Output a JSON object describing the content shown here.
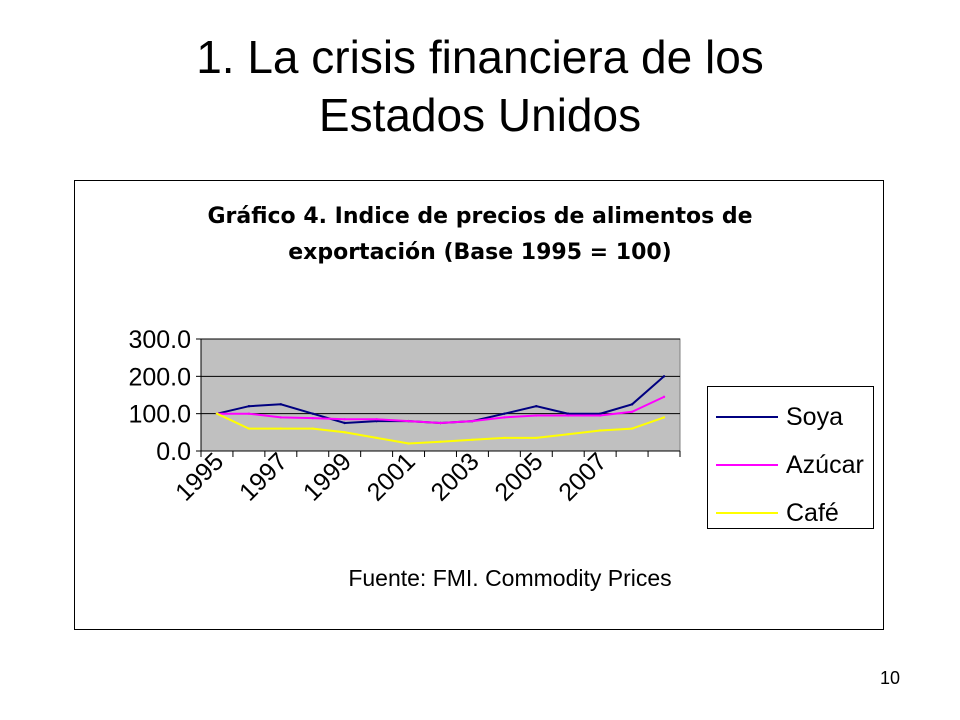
{
  "slide": {
    "title_line1": "1. La crisis financiera de los",
    "title_line2": "Estados Unidos",
    "page_number": "10"
  },
  "chart_data": {
    "type": "line",
    "title_line1": "Gráfico 4. Indice de precios de alimentos de",
    "title_line2": "exportación (Base 1995 = 100)",
    "source": "Fuente: FMI. Commodity Prices",
    "x": [
      1995,
      1996,
      1997,
      1998,
      1999,
      2000,
      2001,
      2002,
      2003,
      2004,
      2005,
      2006,
      2007,
      2008,
      2009
    ],
    "x_tick_labels": [
      "1995",
      "1997",
      "1999",
      "2001",
      "2003",
      "2005",
      "2007"
    ],
    "y_tick_labels": [
      "0.0",
      "100.0",
      "200.0",
      "300.0"
    ],
    "ylim": [
      0,
      300
    ],
    "y_ticks": [
      0,
      100,
      200,
      300
    ],
    "plot_background": "#c0c0c0",
    "grid": true,
    "legend_position": "right",
    "series": [
      {
        "name": "Soya",
        "color": "#000080",
        "values": [
          100,
          120,
          125,
          100,
          75,
          80,
          80,
          75,
          80,
          100,
          120,
          100,
          100,
          125,
          200
        ]
      },
      {
        "name": "Azúcar",
        "color": "#ff00ff",
        "values": [
          100,
          100,
          90,
          88,
          85,
          85,
          80,
          75,
          80,
          90,
          95,
          95,
          95,
          105,
          145
        ]
      },
      {
        "name": "Café",
        "color": "#ffff00",
        "values": [
          100,
          60,
          60,
          60,
          50,
          35,
          20,
          25,
          30,
          35,
          35,
          45,
          55,
          60,
          90
        ]
      }
    ]
  }
}
